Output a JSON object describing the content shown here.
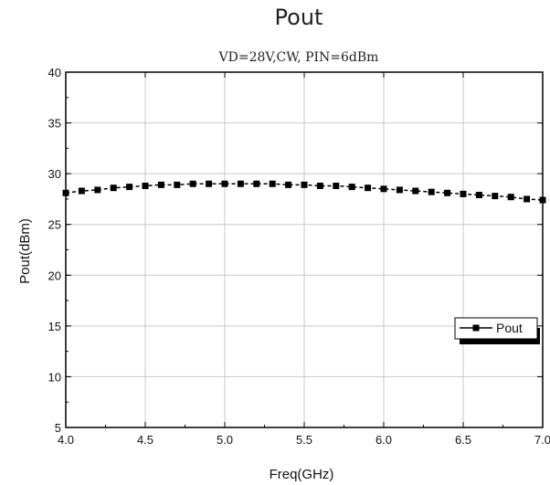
{
  "chart_data": {
    "type": "line",
    "title": "Pout",
    "subtitle": "VD=28V,CW, PIN=6dBm",
    "xlabel": "Freq(GHz)",
    "ylabel": "Pout(dBm)",
    "xlim": [
      4.0,
      7.0
    ],
    "ylim": [
      5,
      40
    ],
    "x_ticks": [
      "4.0",
      "4.5",
      "5.0",
      "5.5",
      "6.0",
      "6.5",
      "7.0"
    ],
    "y_ticks": [
      "5",
      "10",
      "15",
      "20",
      "25",
      "30",
      "35",
      "40"
    ],
    "grid": true,
    "legend": {
      "position": "right",
      "entries": [
        "Pout"
      ]
    },
    "series": [
      {
        "name": "Pout",
        "color": "#000000",
        "marker": "square",
        "x": [
          4.0,
          4.1,
          4.2,
          4.3,
          4.4,
          4.5,
          4.6,
          4.7,
          4.8,
          4.9,
          5.0,
          5.1,
          5.2,
          5.3,
          5.4,
          5.5,
          5.6,
          5.7,
          5.8,
          5.9,
          6.0,
          6.1,
          6.2,
          6.3,
          6.4,
          6.5,
          6.6,
          6.7,
          6.8,
          6.9,
          7.0
        ],
        "y": [
          28.1,
          28.3,
          28.4,
          28.6,
          28.7,
          28.8,
          28.9,
          28.9,
          29.0,
          29.0,
          29.0,
          29.0,
          29.0,
          29.0,
          28.9,
          28.9,
          28.8,
          28.8,
          28.7,
          28.6,
          28.5,
          28.4,
          28.3,
          28.2,
          28.1,
          28.0,
          27.9,
          27.8,
          27.7,
          27.5,
          27.4
        ]
      }
    ]
  }
}
